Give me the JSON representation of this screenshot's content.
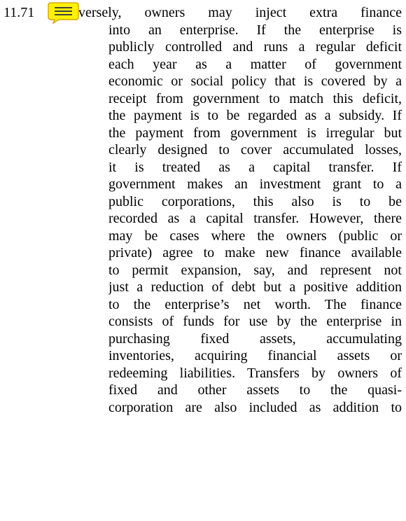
{
  "paragraph": {
    "number": "11.71",
    "lines": [
      "versely, owners may inject extra finance",
      "into an enterprise.  If the enterprise is",
      "publicly controlled and runs a regular deficit",
      "each year as a matter of government",
      "economic or social policy that is covered by a",
      "receipt from government to match this deficit,",
      "the payment is to be regarded as a subsidy. If",
      "the payment from government is irregular but",
      "clearly designed to cover accumulated losses,",
      "it is treated as a capital transfer.   If",
      "government makes an investment grant to a",
      "public corporations, this also is to be",
      "recorded as a capital transfer. However, there",
      "may be cases where the owners (public or",
      "private) agree to make new finance available",
      "to permit expansion, say, and represent not",
      "just a reduction of debt but a positive addition",
      "to the enterprise’s net worth. The finance",
      "consists of funds for use by the enterprise in",
      "purchasing   fixed   assets,   accumulating",
      "inventories, acquiring financial assets or",
      "redeeming liabilities. Transfers by owners of",
      "fixed and other assets to the quasi-",
      "corporation are also included as addition to"
    ]
  }
}
